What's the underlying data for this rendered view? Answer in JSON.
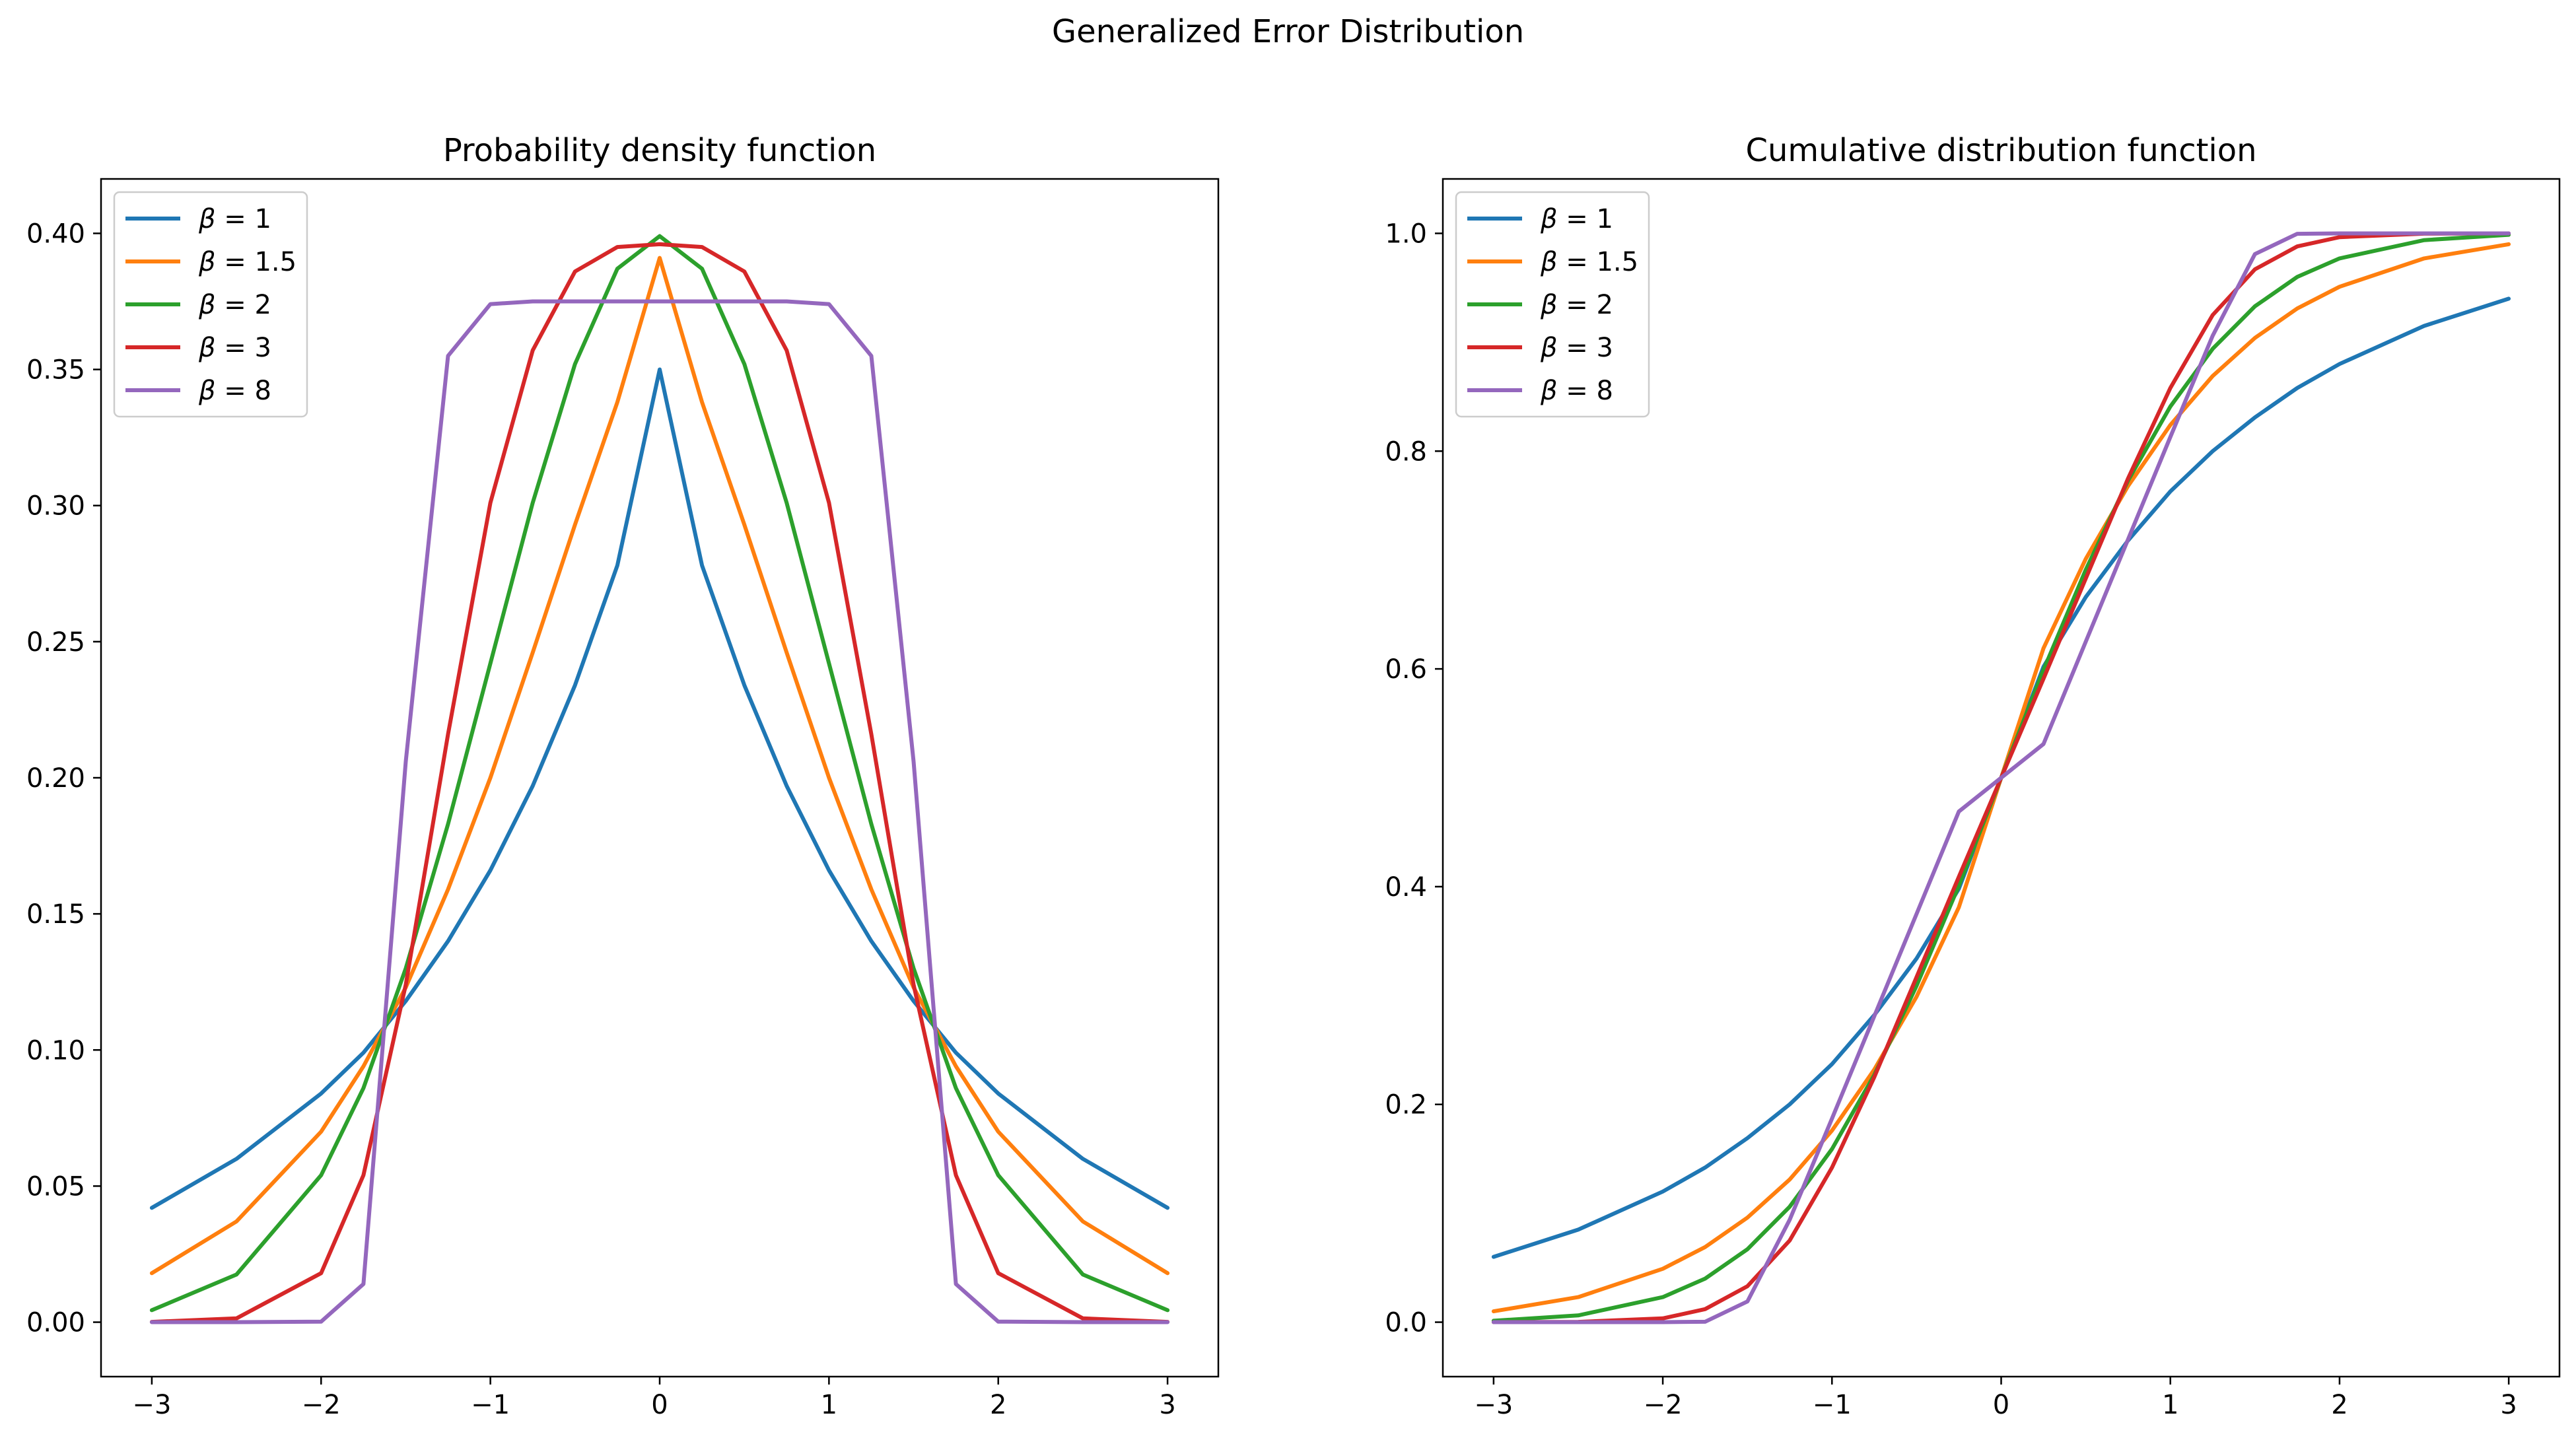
{
  "figure": {
    "title": "Generalized Error Distribution"
  },
  "colors": {
    "axes": "#000000",
    "legend_border": "#cccccc"
  },
  "chart_data": [
    {
      "type": "line",
      "title": "Probability density function",
      "xlabel": "",
      "ylabel": "",
      "xlim": [
        -3.3,
        3.3
      ],
      "ylim": [
        -0.02,
        0.42
      ],
      "xticks": [
        -3,
        -2,
        -1,
        0,
        1,
        2,
        3
      ],
      "xtick_labels": [
        "−3",
        "−2",
        "−1",
        "0",
        "1",
        "2",
        "3"
      ],
      "yticks": [
        0.0,
        0.05,
        0.1,
        0.15,
        0.2,
        0.25,
        0.3,
        0.35,
        0.4
      ],
      "ytick_labels": [
        "0.00",
        "0.05",
        "0.10",
        "0.15",
        "0.20",
        "0.25",
        "0.30",
        "0.35",
        "0.40"
      ],
      "grid": false,
      "legend": "upper-left",
      "x": [
        -3.0,
        -2.5,
        -2.0,
        -1.75,
        -1.5,
        -1.25,
        -1.0,
        -0.75,
        -0.5,
        -0.25,
        0.0,
        0.25,
        0.5,
        0.75,
        1.0,
        1.25,
        1.5,
        1.75,
        2.0,
        2.5,
        3.0
      ],
      "series": [
        {
          "name": "β = 1",
          "symbol": "β",
          "equals": "=",
          "number": "1",
          "color": "#1f77b4",
          "values": [
            0.042,
            0.06,
            0.084,
            0.099,
            0.118,
            0.14,
            0.166,
            0.197,
            0.234,
            0.278,
            0.35,
            0.278,
            0.234,
            0.197,
            0.166,
            0.14,
            0.118,
            0.099,
            0.084,
            0.06,
            0.042
          ]
        },
        {
          "name": "β = 1.5",
          "symbol": "β",
          "equals": "=",
          "number": "1.5",
          "color": "#ff7f0e",
          "values": [
            0.018,
            0.037,
            0.07,
            0.094,
            0.123,
            0.159,
            0.2,
            0.246,
            0.293,
            0.338,
            0.391,
            0.338,
            0.293,
            0.246,
            0.2,
            0.159,
            0.123,
            0.094,
            0.07,
            0.037,
            0.018
          ]
        },
        {
          "name": "β = 2",
          "symbol": "β",
          "equals": "=",
          "number": "2",
          "color": "#2ca02c",
          "values": [
            0.0044,
            0.0175,
            0.054,
            0.086,
            0.13,
            0.183,
            0.242,
            0.301,
            0.352,
            0.387,
            0.399,
            0.387,
            0.352,
            0.301,
            0.242,
            0.183,
            0.13,
            0.086,
            0.054,
            0.0175,
            0.0044
          ]
        },
        {
          "name": "β = 3",
          "symbol": "β",
          "equals": "=",
          "number": "3",
          "color": "#d62728",
          "values": [
            0.0001,
            0.0014,
            0.018,
            0.054,
            0.124,
            0.216,
            0.301,
            0.357,
            0.386,
            0.395,
            0.396,
            0.395,
            0.386,
            0.357,
            0.301,
            0.216,
            0.124,
            0.054,
            0.018,
            0.0014,
            0.0001
          ]
        },
        {
          "name": "β = 8",
          "symbol": "β",
          "equals": "=",
          "number": "8",
          "color": "#9467bd",
          "values": [
            0.0,
            0.0,
            0.0002,
            0.014,
            0.206,
            0.355,
            0.374,
            0.375,
            0.375,
            0.375,
            0.375,
            0.375,
            0.375,
            0.375,
            0.374,
            0.355,
            0.206,
            0.014,
            0.0002,
            0.0,
            0.0
          ]
        }
      ]
    },
    {
      "type": "line",
      "title": "Cumulative distribution function",
      "xlabel": "",
      "ylabel": "",
      "xlim": [
        -3.3,
        3.3
      ],
      "ylim": [
        -0.05,
        1.05
      ],
      "xticks": [
        -3,
        -2,
        -1,
        0,
        1,
        2,
        3
      ],
      "xtick_labels": [
        "−3",
        "−2",
        "−1",
        "0",
        "1",
        "2",
        "3"
      ],
      "yticks": [
        0.0,
        0.2,
        0.4,
        0.6,
        0.8,
        1.0
      ],
      "ytick_labels": [
        "0.0",
        "0.2",
        "0.4",
        "0.6",
        "0.8",
        "1.0"
      ],
      "grid": false,
      "legend": "upper-left",
      "x": [
        -3.0,
        -2.5,
        -2.0,
        -1.75,
        -1.5,
        -1.25,
        -1.0,
        -0.75,
        -0.5,
        -0.25,
        0.0,
        0.25,
        0.5,
        0.75,
        1.0,
        1.25,
        1.5,
        1.75,
        2.0,
        2.5,
        3.0
      ],
      "series": [
        {
          "name": "β = 1",
          "symbol": "β",
          "equals": "=",
          "number": "1",
          "color": "#1f77b4",
          "values": [
            0.06,
            0.085,
            0.12,
            0.142,
            0.169,
            0.2,
            0.237,
            0.282,
            0.334,
            0.398,
            0.5,
            0.602,
            0.666,
            0.718,
            0.763,
            0.8,
            0.831,
            0.858,
            0.88,
            0.915,
            0.94
          ]
        },
        {
          "name": "β = 1.5",
          "symbol": "β",
          "equals": "=",
          "number": "1.5",
          "color": "#ff7f0e",
          "values": [
            0.01,
            0.023,
            0.049,
            0.069,
            0.096,
            0.131,
            0.176,
            0.232,
            0.299,
            0.381,
            0.5,
            0.619,
            0.701,
            0.768,
            0.824,
            0.869,
            0.904,
            0.931,
            0.951,
            0.977,
            0.99
          ]
        },
        {
          "name": "β = 2",
          "symbol": "β",
          "equals": "=",
          "number": "2",
          "color": "#2ca02c",
          "values": [
            0.0013,
            0.0062,
            0.023,
            0.04,
            0.067,
            0.106,
            0.159,
            0.227,
            0.309,
            0.401,
            0.5,
            0.599,
            0.691,
            0.773,
            0.841,
            0.894,
            0.933,
            0.96,
            0.977,
            0.9938,
            0.9987
          ]
        },
        {
          "name": "β = 3",
          "symbol": "β",
          "equals": "=",
          "number": "3",
          "color": "#d62728",
          "values": [
            0.0,
            0.0003,
            0.0035,
            0.012,
            0.033,
            0.075,
            0.142,
            0.225,
            0.317,
            0.409,
            0.5,
            0.591,
            0.683,
            0.775,
            0.858,
            0.925,
            0.967,
            0.988,
            0.9965,
            0.9997,
            1.0
          ]
        },
        {
          "name": "β = 8",
          "symbol": "β",
          "equals": "=",
          "number": "8",
          "color": "#9467bd",
          "values": [
            0.0,
            0.0,
            0.0,
            0.0004,
            0.019,
            0.094,
            0.187,
            0.281,
            0.375,
            0.469,
            0.5,
            0.531,
            0.625,
            0.719,
            0.813,
            0.906,
            0.981,
            0.9996,
            1.0,
            1.0,
            1.0
          ]
        }
      ]
    }
  ]
}
